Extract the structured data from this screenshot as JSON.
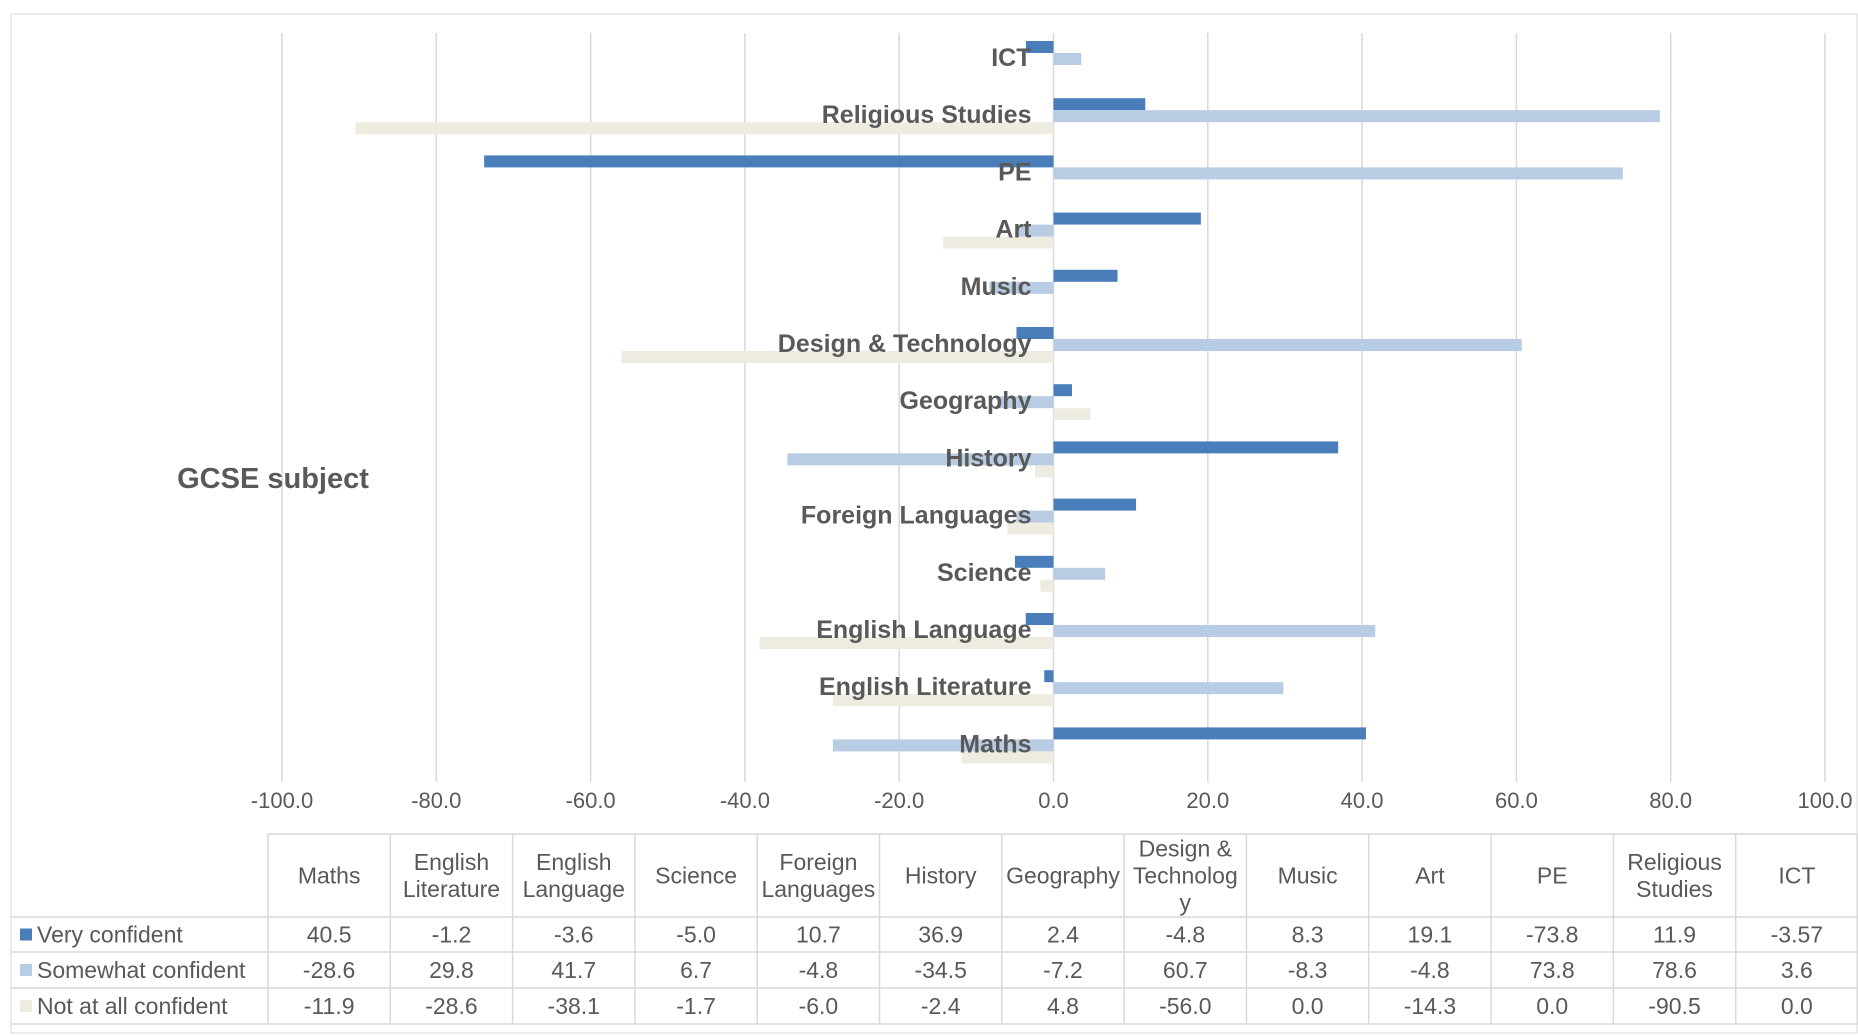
{
  "chart_data": {
    "type": "bar",
    "orientation": "horizontal",
    "title": "",
    "ylabel": "GCSE subject",
    "xlabel": "",
    "categories": [
      "Maths",
      "English Literature",
      "English Language",
      "Science",
      "Foreign Languages",
      "History",
      "Geography",
      "Design & Technology",
      "Music",
      "Art",
      "PE",
      "Religious Studies",
      "ICT"
    ],
    "table_categories": [
      [
        "Maths"
      ],
      [
        "English",
        "Literature"
      ],
      [
        "English",
        "Language"
      ],
      [
        "Science"
      ],
      [
        "Foreign",
        "Languages"
      ],
      [
        "History"
      ],
      [
        "Geography"
      ],
      [
        "Design &",
        "Technolog",
        "y"
      ],
      [
        "Music"
      ],
      [
        "Art"
      ],
      [
        "PE"
      ],
      [
        "Religious",
        "Studies"
      ],
      [
        "ICT"
      ]
    ],
    "xlim": [
      -100,
      100
    ],
    "x_ticks": [
      "-100.0",
      "-80.0",
      "-60.0",
      "-40.0",
      "-20.0",
      "0.0",
      "20.0",
      "40.0",
      "60.0",
      "80.0",
      "100.0"
    ],
    "grid": "vertical",
    "legend": "data-table",
    "series": [
      {
        "name": "Very confident",
        "color": "#4a7ebb",
        "values": [
          40.5,
          -1.2,
          -3.6,
          -5.0,
          10.7,
          36.9,
          2.4,
          -4.8,
          8.3,
          19.1,
          -73.8,
          11.9,
          -3.57
        ],
        "labels": [
          "40.5",
          "-1.2",
          "-3.6",
          "-5.0",
          "10.7",
          "36.9",
          "2.4",
          "-4.8",
          "8.3",
          "19.1",
          "-73.8",
          "11.9",
          "-3.57"
        ]
      },
      {
        "name": "Somewhat confident",
        "color": "#b8cce4",
        "values": [
          -28.6,
          29.8,
          41.7,
          6.7,
          -4.8,
          -34.5,
          -7.2,
          60.7,
          -8.3,
          -4.8,
          73.8,
          78.6,
          3.6
        ],
        "labels": [
          "-28.6",
          "29.8",
          "41.7",
          "6.7",
          "-4.8",
          "-34.5",
          "-7.2",
          "60.7",
          "-8.3",
          "-4.8",
          "73.8",
          "78.6",
          "3.6"
        ]
      },
      {
        "name": "Not at all confident",
        "color": "#eeece1",
        "values": [
          -11.9,
          -28.6,
          -38.1,
          -1.7,
          -6.0,
          -2.4,
          4.8,
          -56.0,
          0.0,
          -14.3,
          0.0,
          -90.5,
          0.0
        ],
        "labels": [
          "-11.9",
          "-28.6",
          "-38.1",
          "-1.7",
          "-6.0",
          "-2.4",
          "4.8",
          "-56.0",
          "0.0",
          "-14.3",
          "0.0",
          "-90.5",
          "0.0"
        ]
      }
    ]
  }
}
